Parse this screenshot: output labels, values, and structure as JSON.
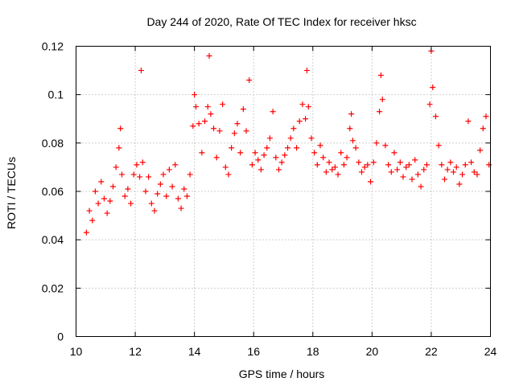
{
  "chart_data": {
    "type": "scatter",
    "title": "Day 244 of 2020, Rate Of TEC Index for receiver hksc",
    "xlabel": "GPS time / hours",
    "ylabel": "ROTI / TECUs",
    "xlim": [
      10,
      24
    ],
    "ylim": [
      0,
      0.12
    ],
    "x_ticks": [
      10,
      12,
      14,
      16,
      18,
      20,
      22,
      24
    ],
    "y_ticks": [
      0,
      0.02,
      0.04,
      0.06,
      0.08,
      0.1,
      0.12
    ],
    "x_tick_labels": [
      "10",
      "12",
      "14",
      "16",
      "18",
      "20",
      "22",
      "24"
    ],
    "y_tick_labels": [
      "0",
      "0.02",
      "0.04",
      "0.06",
      "0.08",
      "0.1",
      "0.12"
    ],
    "grid": true,
    "marker": "plus",
    "color": "#ff0000",
    "series": [
      {
        "x": [
          10.35,
          10.45,
          10.55,
          10.65,
          10.75,
          10.85,
          10.95,
          11.05,
          11.15,
          11.25,
          11.35,
          11.45,
          11.5,
          11.55,
          11.65,
          11.75,
          11.85,
          11.95,
          12.05,
          12.15,
          12.2,
          12.25,
          12.35,
          12.45,
          12.55,
          12.65,
          12.75,
          12.85,
          12.95,
          13.05,
          13.15,
          13.25,
          13.35,
          13.45,
          13.55,
          13.65,
          13.75,
          13.85,
          13.95,
          14.0,
          14.05,
          14.15,
          14.25,
          14.35,
          14.45,
          14.5,
          14.55,
          14.65,
          14.75,
          14.85,
          14.95,
          15.05,
          15.15,
          15.25,
          15.35,
          15.45,
          15.55,
          15.65,
          15.75,
          15.85,
          15.95,
          16.05,
          16.15,
          16.25,
          16.35,
          16.45,
          16.55,
          16.65,
          16.75,
          16.85,
          16.95,
          17.05,
          17.15,
          17.25,
          17.35,
          17.45,
          17.55,
          17.65,
          17.75,
          17.8,
          17.85,
          17.95,
          18.05,
          18.15,
          18.25,
          18.35,
          18.45,
          18.55,
          18.65,
          18.75,
          18.85,
          18.95,
          19.05,
          19.15,
          19.25,
          19.3,
          19.35,
          19.45,
          19.55,
          19.65,
          19.75,
          19.85,
          19.95,
          20.05,
          20.15,
          20.25,
          20.3,
          20.35,
          20.45,
          20.55,
          20.65,
          20.75,
          20.85,
          20.95,
          21.05,
          21.15,
          21.25,
          21.35,
          21.45,
          21.55,
          21.65,
          21.75,
          21.85,
          21.95,
          22.0,
          22.05,
          22.15,
          22.25,
          22.35,
          22.45,
          22.55,
          22.65,
          22.75,
          22.85,
          22.95,
          23.05,
          23.15,
          23.25,
          23.35,
          23.45,
          23.55,
          23.65,
          23.75,
          23.85,
          23.95
        ],
        "y": [
          0.043,
          0.052,
          0.048,
          0.06,
          0.055,
          0.064,
          0.057,
          0.051,
          0.056,
          0.062,
          0.07,
          0.078,
          0.086,
          0.067,
          0.058,
          0.061,
          0.055,
          0.067,
          0.071,
          0.066,
          0.11,
          0.072,
          0.06,
          0.066,
          0.055,
          0.052,
          0.059,
          0.063,
          0.067,
          0.058,
          0.069,
          0.062,
          0.071,
          0.057,
          0.053,
          0.061,
          0.058,
          0.067,
          0.087,
          0.1,
          0.095,
          0.088,
          0.076,
          0.089,
          0.095,
          0.116,
          0.092,
          0.086,
          0.074,
          0.085,
          0.096,
          0.07,
          0.067,
          0.078,
          0.084,
          0.088,
          0.076,
          0.094,
          0.085,
          0.106,
          0.071,
          0.076,
          0.073,
          0.069,
          0.075,
          0.078,
          0.082,
          0.093,
          0.074,
          0.069,
          0.072,
          0.075,
          0.078,
          0.082,
          0.086,
          0.078,
          0.089,
          0.096,
          0.09,
          0.11,
          0.095,
          0.082,
          0.076,
          0.071,
          0.079,
          0.074,
          0.068,
          0.072,
          0.069,
          0.07,
          0.067,
          0.076,
          0.071,
          0.074,
          0.086,
          0.092,
          0.081,
          0.078,
          0.072,
          0.068,
          0.07,
          0.071,
          0.064,
          0.072,
          0.08,
          0.093,
          0.108,
          0.098,
          0.079,
          0.071,
          0.068,
          0.076,
          0.069,
          0.072,
          0.066,
          0.07,
          0.071,
          0.065,
          0.073,
          0.067,
          0.062,
          0.069,
          0.071,
          0.096,
          0.118,
          0.103,
          0.091,
          0.079,
          0.071,
          0.065,
          0.069,
          0.072,
          0.068,
          0.07,
          0.063,
          0.067,
          0.071,
          0.089,
          0.072,
          0.068,
          0.067,
          0.077,
          0.086,
          0.091,
          0.071
        ]
      }
    ]
  }
}
